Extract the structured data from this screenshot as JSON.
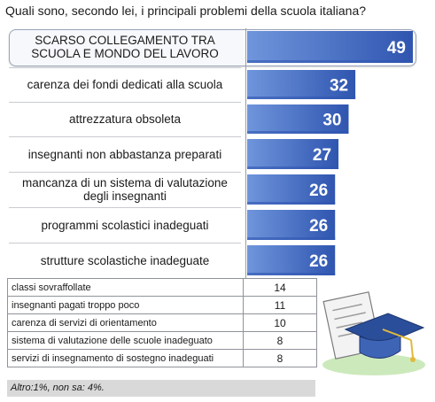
{
  "title": "Quali sono, secondo lei, i principali problemi della scuola italiana?",
  "chart_data": {
    "type": "bar",
    "orientation": "horizontal",
    "categories": [
      "SCARSO COLLEGAMENTO TRA SCUOLA E MONDO DEL LAVORO",
      "carenza dei fondi dedicati alla scuola",
      "attrezzatura obsoleta",
      "insegnanti non abbastanza preparati",
      "mancanza di un sistema di valutazione degli insegnanti",
      "programmi scolastici inadeguati",
      "strutture scolastiche inadeguate"
    ],
    "values": [
      49,
      32,
      30,
      27,
      26,
      26,
      26
    ],
    "highlighted_index": 0,
    "bar_color": "#2f55b0",
    "bar_color_light": "#6f95dc",
    "xlim": [
      0,
      49
    ]
  },
  "table": {
    "rows": [
      {
        "label": "classi sovraffollate",
        "value": "14"
      },
      {
        "label": "insegnanti pagati troppo poco",
        "value": "11"
      },
      {
        "label": "carenza di servizi di orientamento",
        "value": "10"
      },
      {
        "label": "sistema di valutazione delle scuole inadeguato",
        "value": "8"
      },
      {
        "label": "servizi di insegnamento di sostegno inadeguati",
        "value": "8"
      }
    ]
  },
  "footnote": "Altro:1%, non sa: 4%.",
  "decoration": {
    "icon": "graduation-cap-diploma-icon"
  }
}
